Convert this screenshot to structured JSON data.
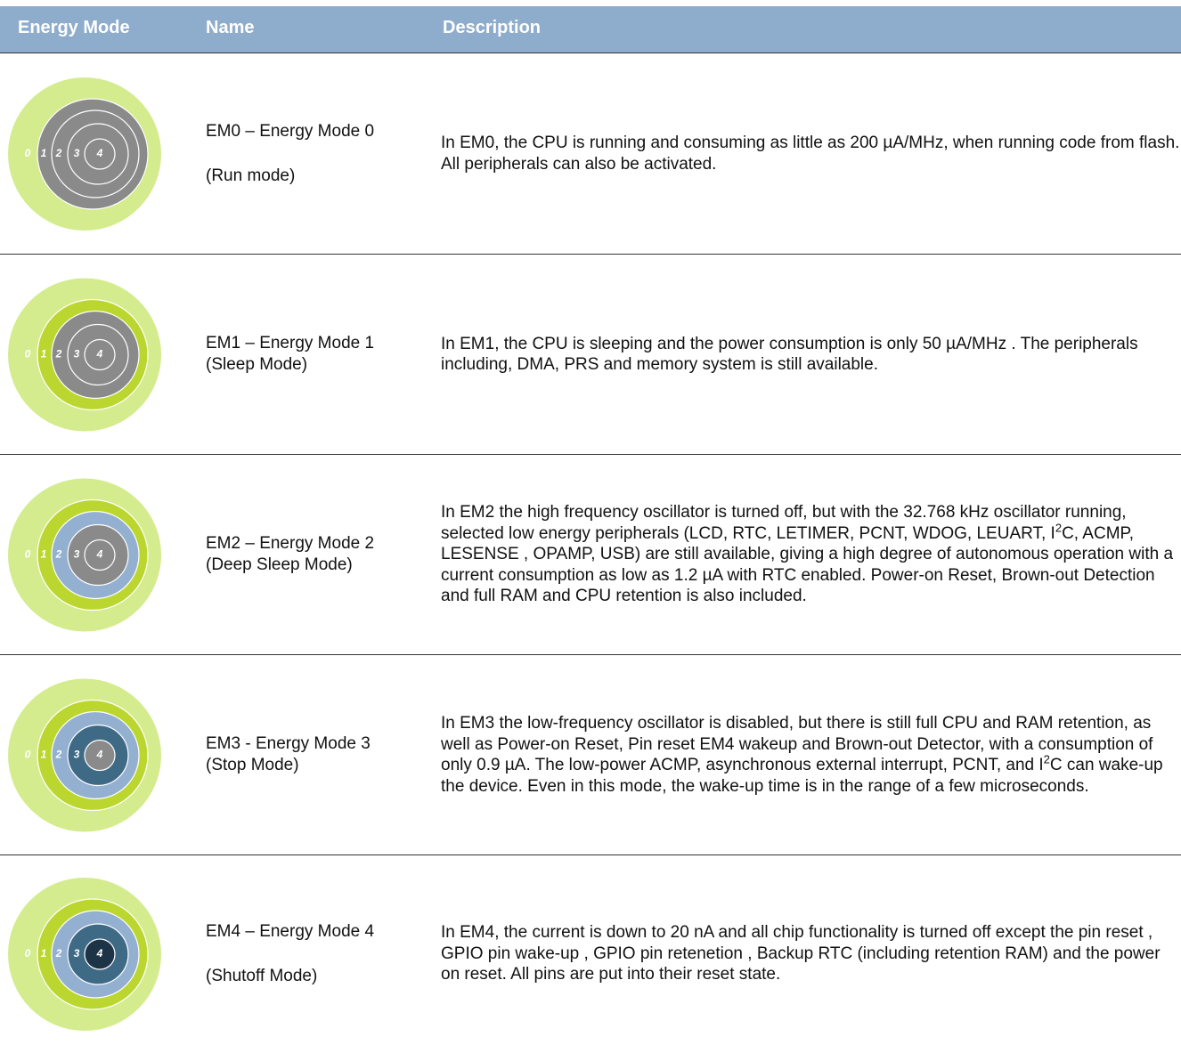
{
  "header": {
    "columns": [
      "Energy Mode",
      "Name",
      "Description"
    ]
  },
  "ring_labels": [
    "0",
    "1",
    "2",
    "3",
    "4"
  ],
  "rows": [
    {
      "name": "EM0 – Energy Mode 0",
      "mode": "(Run mode)",
      "description": [
        "In EM0, the CPU is running and consuming as little as 200 µA/MHz, when running code from flash. All peripherals can also be activated."
      ]
    },
    {
      "name": "EM1 – Energy Mode 1",
      "mode": "(Sleep Mode)",
      "description": [
        "In EM1, the CPU is sleeping and the power consumption is only 50 µA/MHz . The peripherals including, DMA, PRS and memory system is still available."
      ]
    },
    {
      "name": "EM2 – Energy Mode 2",
      "mode": "(Deep Sleep Mode)",
      "description": [
        "In EM2 the high frequency oscillator is turned off, but with the 32.768 kHz oscillator running, selected low energy peripherals (LCD, RTC, LETIMER, PCNT, WDOG, LEUART, I",
        "2",
        "C, ACMP, LESENSE , OPAMP, USB) are still available, giving a high degree of autonomous operation with a current consumption as low as 1.2 µA with RTC enabled. Power-on Reset, Brown-out Detection and full RAM and CPU retention is also included."
      ]
    },
    {
      "name": "EM3 - Energy Mode 3",
      "mode": "(Stop Mode)",
      "description": [
        "In EM3 the low-frequency oscillator is disabled, but there is still full CPU and RAM retention, as well as Power-on Reset, Pin reset EM4 wakeup and Brown-out Detector, with a consumption of only 0.9 µA. The low-power ACMP, asynchronous external interrupt, PCNT, and I",
        "2",
        "C can wake-up the device. Even in this mode, the wake-up time is in the range of a few microseconds."
      ]
    },
    {
      "name": "EM4 – Energy Mode 4",
      "mode": "(Shutoff Mode)",
      "description": [
        "In EM4, the current is down to 20 nA and all chip functionality is turned off except the pin reset , GPIO pin wake-up , GPIO pin retenetion , Backup RTC (including retention RAM) and the power on reset. All pins are put into their reset state."
      ]
    }
  ]
}
